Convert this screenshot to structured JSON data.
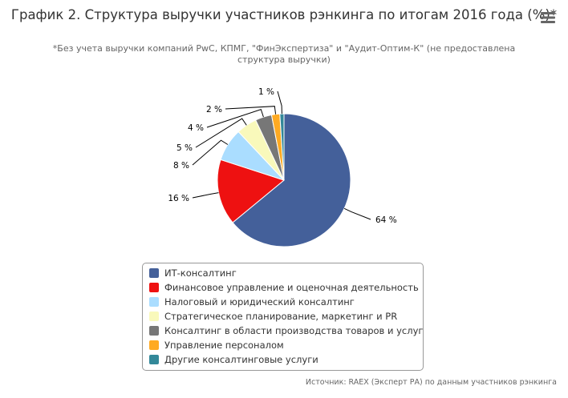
{
  "chart_data": {
    "type": "pie",
    "title": "График 2. Структура выручки участников рэнкинга по итогам 2016 года (%)*",
    "subtitle": "*Без учета выручки компаний PwC, КПМГ, \"ФинЭкспертиза\" и \"Аудит-Оптим-К\" (не предоставлена структура выручки)",
    "source": "Источник: RAEX (Эксперт РА) по данным участников рэнкинга",
    "legend_position": "bottom",
    "slices": [
      {
        "name": "ИТ-консалтинг",
        "value": 64,
        "label": "64 %",
        "color": "#44609a"
      },
      {
        "name": "Финансовое управление и оценочная деятельность",
        "value": 16,
        "label": "16 %",
        "color": "#ee1111"
      },
      {
        "name": "Налоговый и юридический консалтинг",
        "value": 8,
        "label": "8 %",
        "color": "#aaddff"
      },
      {
        "name": "Стратегическое планирование, маркетинг и PR",
        "value": 5,
        "label": "5 %",
        "color": "#f9f9bb"
      },
      {
        "name": "Консалтинг в области производства товаров и услуг",
        "value": 4,
        "label": "4 %",
        "color": "#777777"
      },
      {
        "name": "Управление персоналом",
        "value": 2,
        "label": "2 %",
        "color": "#ffaa22"
      },
      {
        "name": "Другие консалтинговые услуги",
        "value": 1,
        "label": "1 %",
        "color": "#338899"
      }
    ]
  }
}
